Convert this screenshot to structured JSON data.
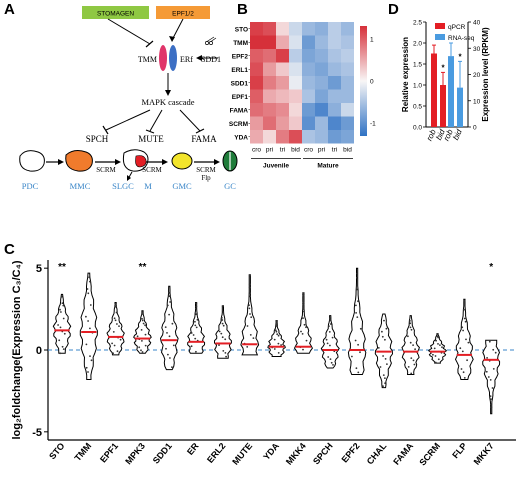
{
  "panels": {
    "A": "A",
    "B": "B",
    "C": "C",
    "D": "D"
  },
  "colors": {
    "red": "#e31e24",
    "blue": "#4a9be0",
    "dashed": "#3a86c8",
    "heat_high": "#d6303a",
    "heat_low": "#2f72c4"
  },
  "diagram": {
    "stomagen": "STOMAGEN",
    "epf": "EPF1/2",
    "tmm": "TMM",
    "erf": "ERf",
    "sdd1": "SDD1",
    "mapk": "MAPK cascade",
    "spch": "SPCH",
    "mute": "MUTE",
    "fama": "FAMA",
    "scrm1": "SCRM",
    "scrm2": "SCRM",
    "scrm3": "SCRM",
    "flp": "Flp",
    "stages": [
      "PDC",
      "MMC",
      "SLGC",
      "M",
      "GMC",
      "GC"
    ]
  },
  "heatmap": {
    "genes": [
      "STO",
      "TMM",
      "EPF2",
      "ERL1",
      "SDD1",
      "EPF1",
      "FAMA",
      "SCRM",
      "YDA"
    ],
    "cols": [
      "cro",
      "pri",
      "tri",
      "bid",
      "cro",
      "pri",
      "tri",
      "bid"
    ],
    "groups": [
      "Juvenile",
      "Mature"
    ],
    "values": [
      [
        1.2,
        1.1,
        0.2,
        -0.3,
        -0.6,
        -0.7,
        -0.4,
        -0.6
      ],
      [
        1.3,
        1.3,
        0.5,
        -0.2,
        -0.9,
        -0.6,
        -0.4,
        -0.5
      ],
      [
        1.0,
        0.9,
        1.2,
        -0.4,
        -0.8,
        -0.7,
        -0.5,
        -0.4
      ],
      [
        1.1,
        0.6,
        0.3,
        -0.2,
        -0.7,
        -0.8,
        -0.6,
        -0.5
      ],
      [
        1.2,
        0.8,
        0.6,
        -0.1,
        -0.6,
        -0.7,
        -0.9,
        -0.6
      ],
      [
        1.0,
        0.5,
        0.4,
        0.3,
        -0.5,
        -0.8,
        -0.6,
        -0.6
      ],
      [
        0.9,
        0.8,
        0.7,
        0.2,
        -0.9,
        -1.1,
        -0.7,
        -0.3
      ],
      [
        0.6,
        0.9,
        0.6,
        0.3,
        -1.0,
        -0.6,
        -1.1,
        -0.9
      ],
      [
        0.5,
        0.2,
        0.8,
        1.1,
        -0.5,
        -0.6,
        -0.9,
        -0.8
      ]
    ],
    "scale_ticks": [
      "1",
      "0",
      "-1"
    ]
  },
  "chart_data": [
    {
      "type": "violin",
      "panel": "C",
      "ylabel": "log₂foldchange(Expression C₃/C₄)",
      "ylim": [
        -5.5,
        5.5
      ],
      "yticks": [
        -5,
        0,
        5
      ],
      "reference_line": 0,
      "genes": [
        "STO",
        "TMM",
        "EPF1",
        "MPK3",
        "SDD1",
        "ER",
        "ERL2",
        "MUTE",
        "YDA",
        "MKK4",
        "SPCH",
        "EPF2",
        "CHAL",
        "FAMA",
        "SCRM",
        "FLP",
        "MKK7"
      ],
      "medians": [
        1.2,
        1.1,
        0.8,
        0.7,
        0.6,
        0.5,
        0.4,
        0.35,
        0.2,
        0.2,
        0.0,
        0.0,
        -0.1,
        -0.1,
        -0.1,
        -0.3,
        -0.6
      ],
      "mins": [
        -0.2,
        -1.8,
        -0.3,
        -0.2,
        -1.2,
        -0.2,
        -0.5,
        -0.3,
        -0.4,
        -0.2,
        -1.1,
        -1.5,
        -2.3,
        -1.5,
        -0.8,
        -1.8,
        -3.9
      ],
      "maxs": [
        3.4,
        4.7,
        2.9,
        2.4,
        3.9,
        2.9,
        2.7,
        4.6,
        1.8,
        3.5,
        2.1,
        5.0,
        2.2,
        2.1,
        1.0,
        3.1,
        0.6
      ],
      "significance": [
        "**",
        "",
        "",
        "**",
        "",
        "",
        "",
        "",
        "",
        "",
        "",
        "",
        "",
        "",
        "",
        "",
        "*"
      ]
    },
    {
      "type": "bar",
      "panel": "D",
      "categories": [
        "rob",
        "bid"
      ],
      "series": [
        {
          "name": "qPCR",
          "values": [
            1.75,
            1.0
          ],
          "errors": [
            0.2,
            0.3
          ],
          "axis": "left"
        },
        {
          "name": "RNA-seq",
          "values": [
            27,
            15
          ],
          "errors": [
            5,
            10
          ],
          "axis": "right"
        }
      ],
      "ylabel_left": "Relative expression",
      "ylabel_right": "Expression level (RPKM)",
      "ylim_left": [
        0,
        2.5
      ],
      "ylim_right": [
        0,
        40
      ],
      "yticks_left": [
        "0.0",
        "0.5",
        "1.0",
        "1.5",
        "2.0",
        "2.5"
      ],
      "yticks_right": [
        "0",
        "10",
        "20",
        "30",
        "40"
      ],
      "significance": [
        "*",
        "*"
      ]
    }
  ]
}
